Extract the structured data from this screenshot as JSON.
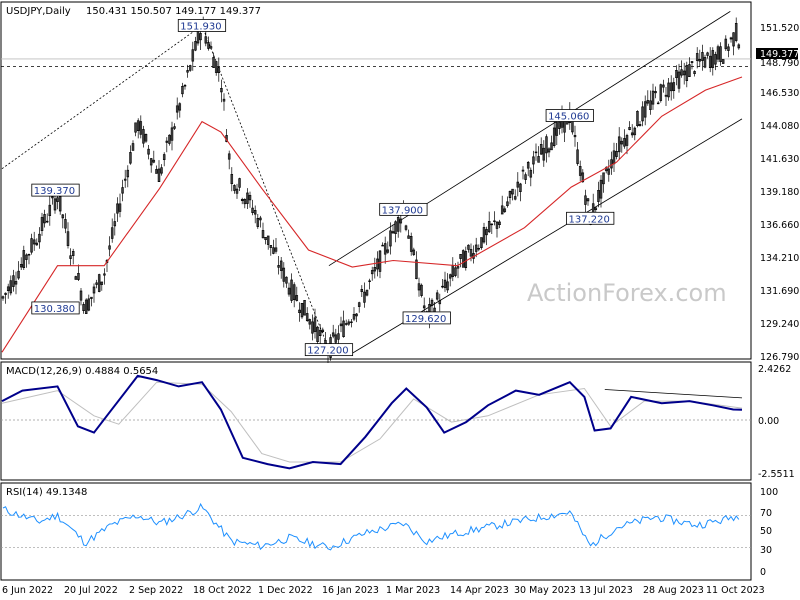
{
  "header": {
    "symbol": "USDJPY,Daily",
    "ohlc": "150.431 150.507 149.177 149.377",
    "macd_label": "MACD(12,26,9) 0.4884 0.5654",
    "rsi_label": "RSI(14) 49.1348"
  },
  "watermark": "ActionForex.com",
  "colors": {
    "candle": "#000000",
    "sma": "#d62728",
    "channel": "#000000",
    "macd": "#00008b",
    "signal": "#bfbfbf",
    "rsi": "#1e90ff",
    "callout_text": "#1f3a93",
    "current_price_box": "#000000",
    "current_price_text": "#ffffff"
  },
  "price_axis": {
    "ticks": [
      "151.520",
      "149.377",
      "148.790",
      "146.530",
      "144.080",
      "141.630",
      "139.180",
      "136.660",
      "134.210",
      "131.690",
      "129.240",
      "126.790"
    ],
    "current_price": "149.377",
    "current_price_value": 149.377,
    "hline_label": "148.790",
    "hline_value": 148.79
  },
  "macd_axis": {
    "ticks": [
      "2.4262",
      "0.00",
      "-2.5511"
    ]
  },
  "rsi_axis": {
    "ticks": [
      "100",
      "70",
      "50",
      "30",
      "0"
    ]
  },
  "x_axis": {
    "labels": [
      "6 Jun 2022",
      "20 Jul 2022",
      "2 Sep 2022",
      "18 Oct 2022",
      "1 Dec 2022",
      "16 Jan 2023",
      "1 Mar 2023",
      "14 Apr 2023",
      "30 May 2023",
      "13 Jul 2023",
      "28 Aug 2023",
      "11 Oct 2023"
    ]
  },
  "annotations": [
    {
      "label": "151.930",
      "date": "2022-10-21",
      "value": 151.93
    },
    {
      "label": "139.370",
      "date": "2022-08-02",
      "value": 139.37
    },
    {
      "label": "130.380",
      "date": "2022-08-02",
      "value": 130.38
    },
    {
      "label": "127.200",
      "date": "2023-01-16",
      "value": 127.2
    },
    {
      "label": "137.900",
      "date": "2023-03-08",
      "value": 137.9
    },
    {
      "label": "129.620",
      "date": "2023-03-24",
      "value": 129.62
    },
    {
      "label": "145.060",
      "date": "2023-06-30",
      "value": 145.06
    },
    {
      "label": "137.220",
      "date": "2023-07-14",
      "value": 137.22
    }
  ],
  "chart_data": [
    {
      "type": "line",
      "title": "USDJPY,Daily",
      "subtitle": "150.431 150.507 149.177 149.377",
      "x_type": "date",
      "ylim": [
        126.79,
        152.5
      ],
      "grid": false,
      "series": [
        {
          "x": [
            "2022-06-06",
            "2022-07-01",
            "2022-07-14",
            "2022-08-02",
            "2022-08-15",
            "2022-09-07",
            "2022-09-22",
            "2022-10-05",
            "2022-10-21",
            "2022-11-03",
            "2022-11-10",
            "2022-11-25",
            "2022-12-20",
            "2023-01-16",
            "2023-02-10",
            "2023-03-08",
            "2023-03-24",
            "2023-04-14",
            "2023-05-12",
            "2023-05-30",
            "2023-06-30",
            "2023-07-14",
            "2023-08-01",
            "2023-08-28",
            "2023-09-25",
            "2023-10-13",
            "2023-10-23",
            "2023-10-26"
          ],
          "values": [
            131.0,
            136.0,
            139.0,
            130.38,
            133.0,
            144.5,
            140.5,
            145.5,
            151.93,
            148.0,
            140.5,
            138.0,
            132.0,
            127.2,
            131.5,
            137.9,
            129.62,
            133.5,
            137.0,
            140.5,
            145.06,
            137.22,
            142.5,
            146.5,
            149.0,
            149.8,
            151.5,
            149.377
          ]
        },
        {
          "name": "SMA",
          "x": [
            "2022-06-06",
            "2022-07-14",
            "2022-08-15",
            "2022-09-22",
            "2022-10-21",
            "2022-11-03",
            "2022-12-01",
            "2023-01-02",
            "2023-02-01",
            "2023-03-01",
            "2023-04-14",
            "2023-05-30",
            "2023-07-01",
            "2023-08-01",
            "2023-09-01",
            "2023-10-01",
            "2023-10-26"
          ],
          "values": [
            127.0,
            133.6,
            133.6,
            139.5,
            144.6,
            143.8,
            139.5,
            134.8,
            133.5,
            134.0,
            133.6,
            136.5,
            139.6,
            141.5,
            145.0,
            147.0,
            148.0
          ]
        }
      ],
      "channel": {
        "upper": {
          "x": [
            "2023-01-16",
            "2023-10-18"
          ],
          "values": [
            133.6,
            153.0
          ]
        },
        "lower": {
          "x": [
            "2023-01-30",
            "2023-10-26"
          ],
          "values": [
            126.79,
            144.8
          ]
        },
        "dotted": {
          "x": [
            "2022-06-06",
            "2022-10-21"
          ],
          "values": [
            141.0,
            151.93
          ]
        },
        "dotted_fall": {
          "x": [
            "2022-10-21",
            "2023-01-16"
          ],
          "values": [
            151.93,
            127.2
          ]
        }
      }
    },
    {
      "type": "line",
      "title": "MACD(12,26,9) 0.4884 0.5654",
      "x_type": "date",
      "ylim": [
        -2.5511,
        2.4262
      ],
      "series": [
        {
          "name": "MACD",
          "x": [
            "2022-06-06",
            "2022-06-20",
            "2022-07-14",
            "2022-07-28",
            "2022-08-08",
            "2022-08-18",
            "2022-09-07",
            "2022-09-20",
            "2022-10-05",
            "2022-10-21",
            "2022-11-03",
            "2022-11-18",
            "2022-12-05",
            "2022-12-20",
            "2023-01-05",
            "2023-01-24",
            "2023-02-10",
            "2023-02-28",
            "2023-03-10",
            "2023-03-24",
            "2023-04-05",
            "2023-04-20",
            "2023-05-05",
            "2023-05-24",
            "2023-06-09",
            "2023-06-30",
            "2023-07-10",
            "2023-07-17",
            "2023-07-28",
            "2023-08-11",
            "2023-09-01",
            "2023-09-20",
            "2023-10-06",
            "2023-10-20",
            "2023-10-26"
          ],
          "values": [
            0.9,
            1.4,
            1.6,
            -0.3,
            -0.6,
            0.3,
            2.1,
            1.9,
            1.6,
            1.8,
            0.5,
            -1.8,
            -2.1,
            -2.3,
            -2.0,
            -2.1,
            -0.8,
            0.8,
            1.5,
            0.6,
            -0.6,
            -0.1,
            0.7,
            1.4,
            1.2,
            1.8,
            1.1,
            -0.5,
            -0.4,
            1.1,
            0.8,
            0.9,
            0.7,
            0.5,
            0.4884
          ]
        },
        {
          "name": "Signal",
          "x": [
            "2022-06-06",
            "2022-07-14",
            "2022-08-08",
            "2022-08-25",
            "2022-09-20",
            "2022-10-21",
            "2022-11-10",
            "2022-12-01",
            "2022-12-20",
            "2023-01-24",
            "2023-02-20",
            "2023-03-15",
            "2023-04-10",
            "2023-05-05",
            "2023-06-09",
            "2023-07-10",
            "2023-07-28",
            "2023-08-20",
            "2023-09-20",
            "2023-10-26"
          ],
          "values": [
            0.8,
            1.4,
            0.2,
            -0.2,
            1.8,
            1.7,
            0.4,
            -1.6,
            -2.0,
            -2.0,
            -0.9,
            1.0,
            -0.1,
            0.2,
            1.2,
            1.5,
            -0.3,
            0.9,
            0.9,
            0.5654
          ]
        },
        {
          "name": "trend",
          "x": [
            "2023-07-24",
            "2023-10-26"
          ],
          "values": [
            1.45,
            1.05
          ]
        }
      ]
    },
    {
      "type": "line",
      "title": "RSI(14) 49.1348",
      "x_type": "date",
      "ylim": [
        0,
        100
      ],
      "series": [
        {
          "name": "RSI",
          "x": [
            "2022-06-06",
            "2022-07-01",
            "2022-07-14",
            "2022-08-02",
            "2022-08-20",
            "2022-09-07",
            "2022-09-22",
            "2022-10-05",
            "2022-10-21",
            "2022-11-10",
            "2022-12-01",
            "2022-12-20",
            "2023-01-16",
            "2023-02-10",
            "2023-03-08",
            "2023-03-24",
            "2023-04-14",
            "2023-05-12",
            "2023-05-30",
            "2023-06-30",
            "2023-07-14",
            "2023-08-01",
            "2023-08-28",
            "2023-09-25",
            "2023-10-13",
            "2023-10-23",
            "2023-10-26"
          ],
          "values": [
            78,
            62,
            70,
            36,
            58,
            70,
            60,
            68,
            80,
            38,
            32,
            42,
            30,
            48,
            60,
            38,
            48,
            58,
            64,
            74,
            32,
            55,
            68,
            58,
            64,
            70,
            49.1348
          ]
        }
      ]
    }
  ]
}
